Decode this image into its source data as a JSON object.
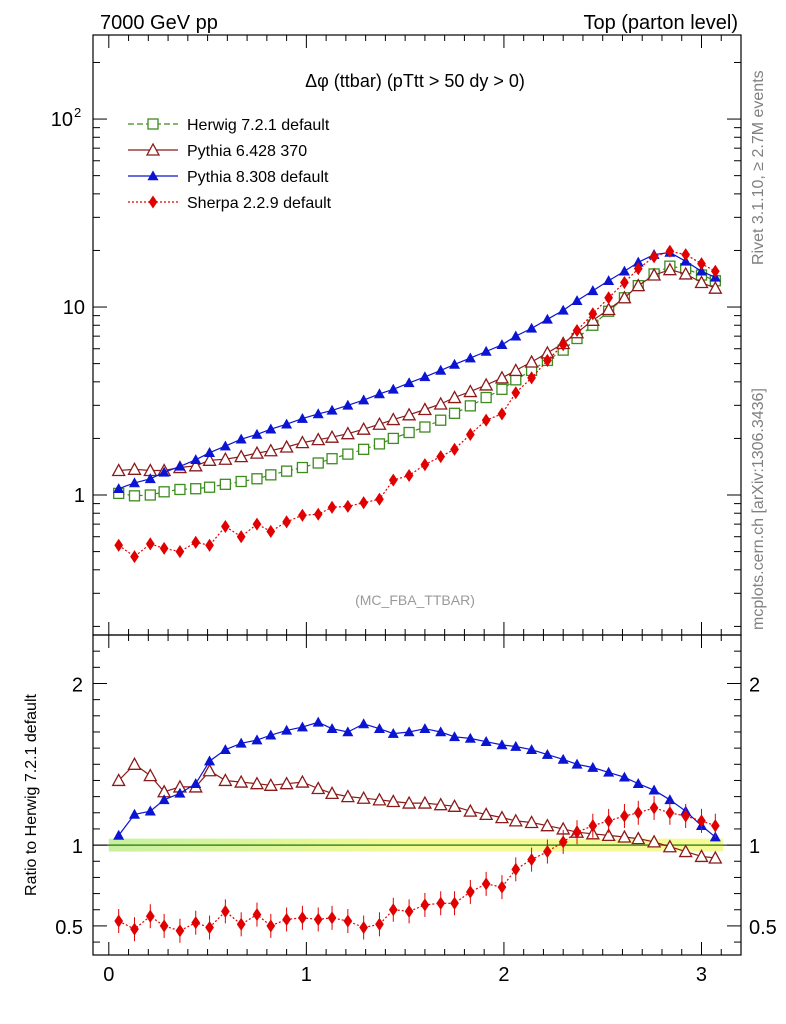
{
  "header": {
    "left": "7000 GeV pp",
    "right": "Top (parton level)"
  },
  "side_labels": {
    "rivet": "Rivet 3.1.10, ≥ 2.7M events",
    "mcplots": "mcplots.cern.ch [arXiv:1306.3436]"
  },
  "chart_data": [
    {
      "type": "line",
      "title": "Δφ (ttbar) (pTtt > 50 dy > 0)",
      "watermark": "(MC_FBA_TTBAR)",
      "yscale": "log",
      "xlim": [
        -0.08,
        3.2
      ],
      "ylim": [
        0.18,
        280
      ],
      "y_ticks": [
        {
          "value": 1,
          "label": "1"
        },
        {
          "value": 10,
          "label": "10"
        },
        {
          "value": 100,
          "label": "10",
          "sup": "2"
        }
      ],
      "legend_position": "top-left",
      "x": [
        0.05,
        0.13,
        0.21,
        0.28,
        0.36,
        0.44,
        0.51,
        0.59,
        0.67,
        0.75,
        0.82,
        0.9,
        0.98,
        1.06,
        1.13,
        1.21,
        1.29,
        1.37,
        1.44,
        1.52,
        1.6,
        1.68,
        1.75,
        1.83,
        1.91,
        1.99,
        2.06,
        2.14,
        2.22,
        2.3,
        2.37,
        2.45,
        2.53,
        2.61,
        2.68,
        2.76,
        2.84,
        2.92,
        3.0,
        3.07
      ],
      "series": [
        {
          "name": "Herwig 7.2.1 default",
          "color": "#3c8c1e",
          "marker": "open-square",
          "line": "dashed",
          "values": [
            1.02,
            0.99,
            1.0,
            1.04,
            1.07,
            1.08,
            1.1,
            1.14,
            1.18,
            1.22,
            1.28,
            1.34,
            1.4,
            1.48,
            1.56,
            1.65,
            1.75,
            1.87,
            2.0,
            2.15,
            2.3,
            2.5,
            2.72,
            2.98,
            3.3,
            3.65,
            4.1,
            4.6,
            5.2,
            5.9,
            6.8,
            8.0,
            9.5,
            11.2,
            13.0,
            15.0,
            16.5,
            16.0,
            14.8,
            13.8
          ]
        },
        {
          "name": "Pythia 6.428 370",
          "color": "#8b1a1a",
          "marker": "open-triangle",
          "line": "solid",
          "values": [
            1.35,
            1.37,
            1.35,
            1.35,
            1.4,
            1.43,
            1.53,
            1.55,
            1.6,
            1.67,
            1.72,
            1.8,
            1.9,
            1.97,
            2.03,
            2.12,
            2.24,
            2.38,
            2.52,
            2.67,
            2.85,
            3.05,
            3.3,
            3.55,
            3.85,
            4.2,
            4.6,
            5.1,
            5.7,
            6.4,
            7.3,
            8.5,
            9.7,
            11.2,
            13.0,
            14.8,
            15.8,
            15.0,
            13.5,
            12.6
          ]
        },
        {
          "name": "Pythia 8.308 default",
          "color": "#0a14d2",
          "marker": "filled-triangle",
          "line": "solid",
          "values": [
            1.08,
            1.16,
            1.22,
            1.32,
            1.42,
            1.54,
            1.68,
            1.82,
            1.98,
            2.1,
            2.24,
            2.38,
            2.55,
            2.7,
            2.82,
            3.0,
            3.2,
            3.45,
            3.65,
            3.95,
            4.25,
            4.6,
            4.95,
            5.35,
            5.8,
            6.3,
            7.0,
            7.7,
            8.6,
            9.6,
            10.8,
            12.2,
            13.8,
            15.5,
            17.3,
            19.0,
            19.5,
            17.5,
            15.5,
            14.4
          ]
        },
        {
          "name": "Sherpa 2.2.9 default",
          "color": "#e10000",
          "marker": "filled-diamond",
          "line": "dotted",
          "values": [
            0.54,
            0.47,
            0.55,
            0.52,
            0.5,
            0.56,
            0.54,
            0.68,
            0.6,
            0.7,
            0.64,
            0.72,
            0.78,
            0.79,
            0.86,
            0.87,
            0.91,
            0.95,
            1.2,
            1.27,
            1.45,
            1.6,
            1.75,
            2.1,
            2.5,
            2.7,
            3.5,
            4.2,
            5.2,
            6.3,
            7.5,
            9.2,
            11.2,
            13.5,
            16.0,
            18.5,
            19.8,
            19.0,
            17.0,
            15.5
          ]
        }
      ]
    },
    {
      "type": "line",
      "ylabel": "Ratio to Herwig 7.2.1 default",
      "xlim": [
        -0.08,
        3.2
      ],
      "ylim": [
        0.32,
        2.3
      ],
      "x_ticks": [
        0,
        1,
        2,
        3
      ],
      "y_ticks": [
        0.5,
        1,
        2
      ],
      "reference": {
        "value": 1.0,
        "band": [
          0.96,
          1.04
        ]
      },
      "series": [
        {
          "name": "Pythia 6.428 370",
          "values": [
            1.4,
            1.5,
            1.43,
            1.33,
            1.36,
            1.36,
            1.46,
            1.4,
            1.39,
            1.38,
            1.37,
            1.38,
            1.39,
            1.35,
            1.32,
            1.3,
            1.29,
            1.28,
            1.27,
            1.26,
            1.26,
            1.25,
            1.24,
            1.21,
            1.19,
            1.17,
            1.15,
            1.14,
            1.12,
            1.1,
            1.08,
            1.07,
            1.06,
            1.05,
            1.04,
            1.02,
            0.99,
            0.96,
            0.93,
            0.92
          ]
        },
        {
          "name": "Pythia 8.308 default",
          "values": [
            1.06,
            1.19,
            1.21,
            1.28,
            1.32,
            1.38,
            1.52,
            1.59,
            1.63,
            1.65,
            1.68,
            1.71,
            1.73,
            1.76,
            1.72,
            1.7,
            1.75,
            1.72,
            1.69,
            1.7,
            1.72,
            1.7,
            1.67,
            1.66,
            1.64,
            1.62,
            1.61,
            1.59,
            1.56,
            1.53,
            1.5,
            1.48,
            1.45,
            1.42,
            1.38,
            1.34,
            1.28,
            1.21,
            1.12,
            1.05
          ]
        },
        {
          "name": "Sherpa 2.2.9 default",
          "values": [
            0.53,
            0.48,
            0.56,
            0.5,
            0.47,
            0.52,
            0.49,
            0.59,
            0.51,
            0.57,
            0.5,
            0.54,
            0.55,
            0.54,
            0.55,
            0.53,
            0.49,
            0.51,
            0.6,
            0.59,
            0.63,
            0.64,
            0.64,
            0.71,
            0.76,
            0.74,
            0.85,
            0.91,
            0.96,
            1.02,
            1.08,
            1.12,
            1.15,
            1.18,
            1.2,
            1.23,
            1.2,
            1.18,
            1.15,
            1.12
          ]
        }
      ]
    }
  ]
}
